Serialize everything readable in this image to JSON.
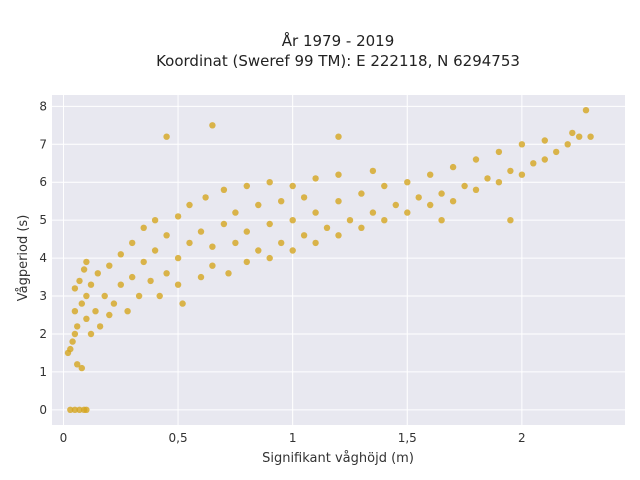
{
  "chart_data": {
    "type": "scatter",
    "title": "År 1979 - 2019",
    "subtitle": "Koordinat (Sweref 99 TM): E 222118, N 6294753",
    "xlabel": "Signifikant våghöjd (m)",
    "ylabel": "Vågperiod (s)",
    "xlim": [
      -0.05,
      2.45
    ],
    "ylim": [
      -0.4,
      8.3
    ],
    "x_ticks": [
      0,
      0.5,
      1,
      1.5,
      2
    ],
    "x_tick_labels": [
      "0",
      "0,5",
      "1",
      "1,5",
      "2"
    ],
    "y_ticks": [
      0,
      1,
      2,
      3,
      4,
      5,
      6,
      7,
      8
    ],
    "y_tick_labels": [
      "0",
      "1",
      "2",
      "3",
      "4",
      "5",
      "6",
      "7",
      "8"
    ],
    "grid": true,
    "legend": "none",
    "colors": {
      "marker": "#d4a51f",
      "plot_background": "#e8e8f0",
      "grid": "#ffffff"
    },
    "series": [
      {
        "marker_opacity": 0.8,
        "points": [
          [
            0.02,
            1.5
          ],
          [
            0.03,
            1.6
          ],
          [
            0.04,
            1.8
          ],
          [
            0.05,
            2.0
          ],
          [
            0.05,
            2.6
          ],
          [
            0.05,
            3.2
          ],
          [
            0.06,
            1.2
          ],
          [
            0.06,
            2.2
          ],
          [
            0.07,
            3.4
          ],
          [
            0.08,
            2.8
          ],
          [
            0.08,
            1.1
          ],
          [
            0.09,
            3.7
          ],
          [
            0.1,
            2.4
          ],
          [
            0.1,
            3.0
          ],
          [
            0.1,
            3.9
          ],
          [
            0.12,
            2.0
          ],
          [
            0.12,
            3.3
          ],
          [
            0.14,
            2.6
          ],
          [
            0.15,
            3.6
          ],
          [
            0.16,
            2.2
          ],
          [
            0.18,
            3.0
          ],
          [
            0.2,
            2.5
          ],
          [
            0.2,
            3.8
          ],
          [
            0.22,
            2.8
          ],
          [
            0.25,
            3.3
          ],
          [
            0.25,
            4.1
          ],
          [
            0.28,
            2.6
          ],
          [
            0.3,
            3.5
          ],
          [
            0.3,
            4.4
          ],
          [
            0.33,
            3.0
          ],
          [
            0.35,
            3.9
          ],
          [
            0.35,
            4.8
          ],
          [
            0.38,
            3.4
          ],
          [
            0.4,
            4.2
          ],
          [
            0.4,
            5.0
          ],
          [
            0.42,
            3.0
          ],
          [
            0.45,
            3.6
          ],
          [
            0.45,
            4.6
          ],
          [
            0.5,
            3.3
          ],
          [
            0.5,
            4.0
          ],
          [
            0.5,
            5.1
          ],
          [
            0.52,
            2.8
          ],
          [
            0.55,
            4.4
          ],
          [
            0.55,
            5.4
          ],
          [
            0.6,
            3.5
          ],
          [
            0.6,
            4.7
          ],
          [
            0.62,
            5.6
          ],
          [
            0.65,
            3.8
          ],
          [
            0.65,
            4.3
          ],
          [
            0.7,
            4.9
          ],
          [
            0.7,
            5.8
          ],
          [
            0.72,
            3.6
          ],
          [
            0.75,
            4.4
          ],
          [
            0.75,
            5.2
          ],
          [
            0.8,
            3.9
          ],
          [
            0.8,
            4.7
          ],
          [
            0.8,
            5.9
          ],
          [
            0.85,
            4.2
          ],
          [
            0.85,
            5.4
          ],
          [
            0.9,
            4.0
          ],
          [
            0.9,
            4.9
          ],
          [
            0.9,
            6.0
          ],
          [
            0.95,
            4.4
          ],
          [
            0.95,
            5.5
          ],
          [
            1.0,
            4.2
          ],
          [
            1.0,
            5.0
          ],
          [
            1.0,
            5.9
          ],
          [
            1.05,
            4.6
          ],
          [
            1.05,
            5.6
          ],
          [
            1.1,
            4.4
          ],
          [
            1.1,
            5.2
          ],
          [
            1.1,
            6.1
          ],
          [
            1.15,
            4.8
          ],
          [
            1.2,
            4.6
          ],
          [
            1.2,
            5.5
          ],
          [
            1.2,
            6.2
          ],
          [
            1.25,
            5.0
          ],
          [
            1.3,
            4.8
          ],
          [
            1.3,
            5.7
          ],
          [
            1.35,
            5.2
          ],
          [
            1.35,
            6.3
          ],
          [
            1.4,
            5.0
          ],
          [
            1.4,
            5.9
          ],
          [
            1.45,
            5.4
          ],
          [
            1.5,
            5.2
          ],
          [
            1.5,
            6.0
          ],
          [
            1.55,
            5.6
          ],
          [
            1.6,
            5.4
          ],
          [
            1.6,
            6.2
          ],
          [
            1.65,
            5.7
          ],
          [
            1.7,
            5.5
          ],
          [
            1.7,
            6.4
          ],
          [
            1.75,
            5.9
          ],
          [
            1.8,
            5.8
          ],
          [
            1.8,
            6.6
          ],
          [
            1.85,
            6.1
          ],
          [
            1.9,
            6.0
          ],
          [
            1.9,
            6.8
          ],
          [
            1.95,
            6.3
          ],
          [
            2.0,
            6.2
          ],
          [
            2.0,
            7.0
          ],
          [
            2.05,
            6.5
          ],
          [
            2.1,
            6.6
          ],
          [
            2.1,
            7.1
          ],
          [
            2.15,
            6.8
          ],
          [
            2.2,
            7.0
          ],
          [
            2.22,
            7.3
          ],
          [
            2.25,
            7.2
          ],
          [
            2.28,
            7.9
          ],
          [
            2.3,
            7.2
          ],
          [
            0.45,
            7.2
          ],
          [
            0.65,
            7.5
          ],
          [
            1.2,
            7.2
          ],
          [
            1.95,
            5.0
          ],
          [
            1.65,
            5.0
          ],
          [
            0.03,
            0
          ],
          [
            0.05,
            0
          ],
          [
            0.07,
            0
          ],
          [
            0.09,
            0
          ],
          [
            0.1,
            0
          ]
        ]
      }
    ]
  }
}
